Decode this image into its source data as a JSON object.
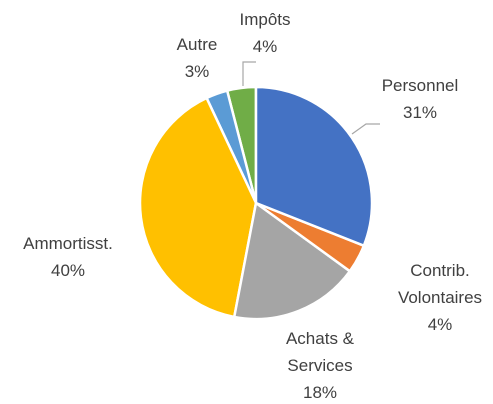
{
  "chart_data": {
    "type": "pie",
    "categories": [
      "Personnel",
      "Contrib. Volontaires",
      "Achats & Services",
      "Ammortisst.",
      "Autre",
      "Impôts"
    ],
    "values": [
      31,
      4,
      18,
      40,
      3,
      4
    ],
    "value_labels": [
      "31%",
      "4%",
      "18%",
      "40%",
      "3%",
      "4%"
    ],
    "colors": [
      "#4472c4",
      "#ed7d31",
      "#a5a5a5",
      "#ffc000",
      "#5b9bd5",
      "#70ad47"
    ]
  }
}
